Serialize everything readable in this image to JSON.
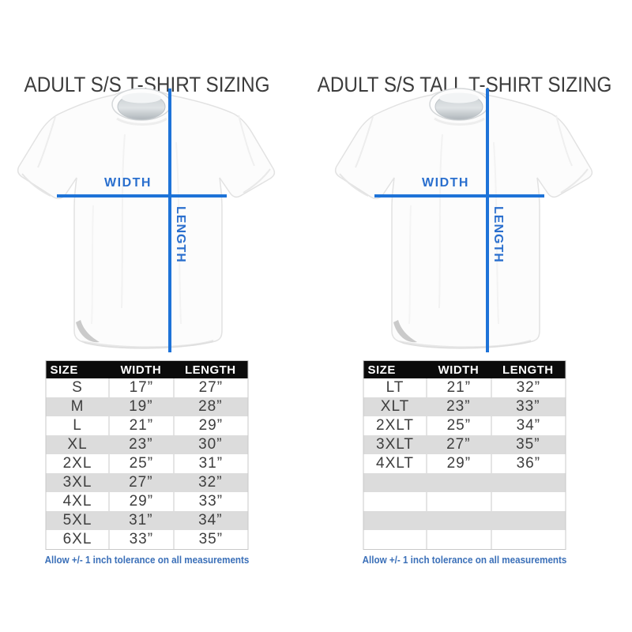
{
  "colors": {
    "line_blue": "#1e73d8",
    "label_blue": "#2a6fce",
    "footer_blue": "#3a6fb8",
    "header_bg": "#0b0b0b",
    "alt_row": "#dcdcdc",
    "border_gray": "#c8c8c8",
    "body_text": "#3e3e3e",
    "title_text": "#3c3c3c"
  },
  "labels": {
    "width": "WIDTH",
    "length": "LENGTH"
  },
  "panels": [
    {
      "title": "ADULT S/S T-SHIRT SIZING",
      "tolerance_note": "Allow +/- 1 inch tolerance on all measurements"
    },
    {
      "title": "ADULT S/S TALL T-SHIRT SIZING",
      "tolerance_note": "Allow +/- 1 inch tolerance on all measurements"
    }
  ],
  "chart_data": [
    {
      "type": "table",
      "title": "ADULT S/S T-SHIRT SIZING",
      "columns": [
        "SIZE",
        "WIDTH",
        "LENGTH"
      ],
      "rows": [
        [
          "S",
          "17”",
          "27”"
        ],
        [
          "M",
          "19”",
          "28”"
        ],
        [
          "L",
          "21”",
          "29”"
        ],
        [
          "XL",
          "23”",
          "30”"
        ],
        [
          "2XL",
          "25”",
          "31”"
        ],
        [
          "3XL",
          "27”",
          "32”"
        ],
        [
          "4XL",
          "29”",
          "33”"
        ],
        [
          "5XL",
          "31”",
          "34”"
        ],
        [
          "6XL",
          "33”",
          "35”"
        ]
      ]
    },
    {
      "type": "table",
      "title": "ADULT S/S TALL T-SHIRT SIZING",
      "columns": [
        "SIZE",
        "WIDTH",
        "LENGTH"
      ],
      "rows": [
        [
          "LT",
          "21”",
          "32”"
        ],
        [
          "XLT",
          "23”",
          "33”"
        ],
        [
          "2XLT",
          "25”",
          "34”"
        ],
        [
          "3XLT",
          "27”",
          "35”"
        ],
        [
          "4XLT",
          "29”",
          "36”"
        ],
        [
          "",
          "",
          ""
        ],
        [
          "",
          "",
          ""
        ],
        [
          "",
          "",
          ""
        ],
        [
          "",
          "",
          ""
        ]
      ]
    }
  ]
}
